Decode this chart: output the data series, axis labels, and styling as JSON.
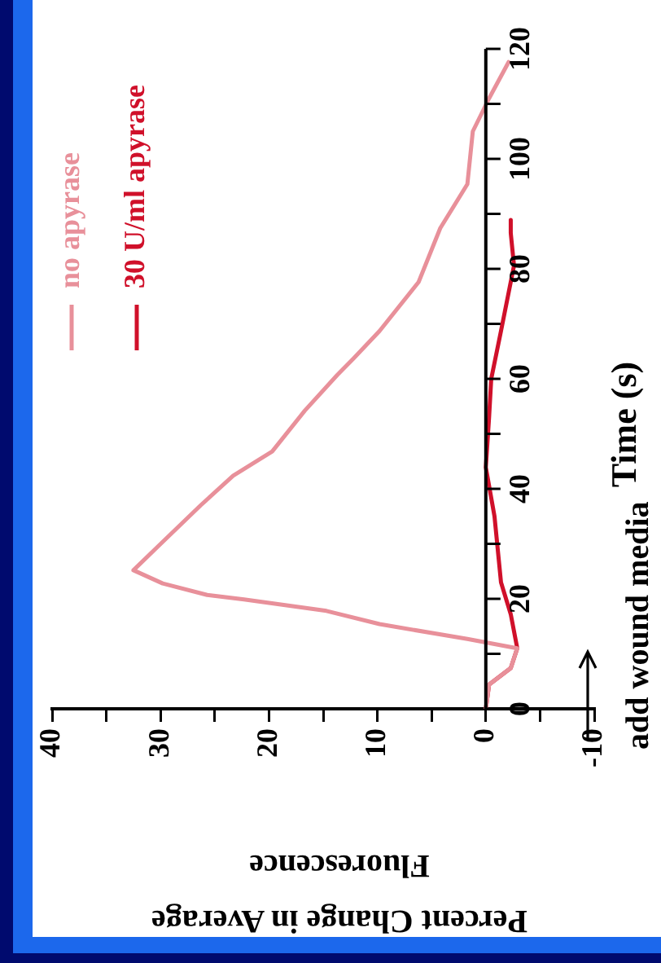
{
  "chart_data": {
    "type": "line",
    "xlabel": "Percent Change in Average Fluorescence",
    "ylabel": "Time (s)",
    "xlim": [
      40,
      -10
    ],
    "ylim": [
      0,
      120
    ],
    "xticks": [
      40,
      {
        "value": 35,
        "label": null
      },
      30,
      {
        "value": 25,
        "label": null
      },
      20,
      {
        "value": 15,
        "label": null
      },
      10,
      {
        "value": 5,
        "label": null
      },
      0,
      {
        "value": -5,
        "label": null
      },
      -10
    ],
    "yticks": [
      0,
      {
        "value": 10,
        "label": null
      },
      20,
      {
        "value": 30,
        "label": null
      },
      40,
      {
        "value": 50,
        "label": null
      },
      60,
      {
        "value": 70,
        "label": null
      },
      80,
      {
        "value": 90,
        "label": null
      },
      100,
      {
        "value": 110,
        "label": null
      },
      120
    ],
    "legend": "top left",
    "marker": "none",
    "line_style": "solid",
    "series": [
      {
        "name": "no apyrase",
        "color": "#e8909a",
        "x": [
          0,
          -0.3,
          -2.3,
          -2.9,
          1.7,
          9.8,
          14.7,
          22.3,
          25.7,
          29.8,
          32.5,
          30.2,
          26.3,
          23.3,
          19.7,
          16.7,
          13.7,
          12.2,
          9.8,
          6.2,
          4.2,
          1.7,
          1.2,
          -0.3,
          -2.1
        ],
        "values": [
          0,
          4.4,
          7.4,
          11,
          12.7,
          15.4,
          17.8,
          19.9,
          20.7,
          22.8,
          25.2,
          29.6,
          37,
          42.4,
          46.8,
          54.2,
          60.7,
          63.7,
          68.7,
          77.6,
          87.4,
          95.4,
          105,
          111,
          117.6
        ]
      },
      {
        "name": "30 U/ml apyrase",
        "color": "#d0102a",
        "x": [
          0,
          -0.3,
          -2.3,
          -2.9,
          -2.3,
          -1.4,
          -0.8,
          0,
          -0.3,
          -0.5,
          -1.4,
          -2.6,
          -2.3,
          -2.3
        ],
        "values": [
          0,
          4.4,
          7.4,
          11,
          17.2,
          23,
          35,
          43.9,
          53,
          60,
          68.7,
          80.6,
          86.5,
          88.9
        ]
      }
    ],
    "annotations": [
      "add wound media"
    ]
  }
}
